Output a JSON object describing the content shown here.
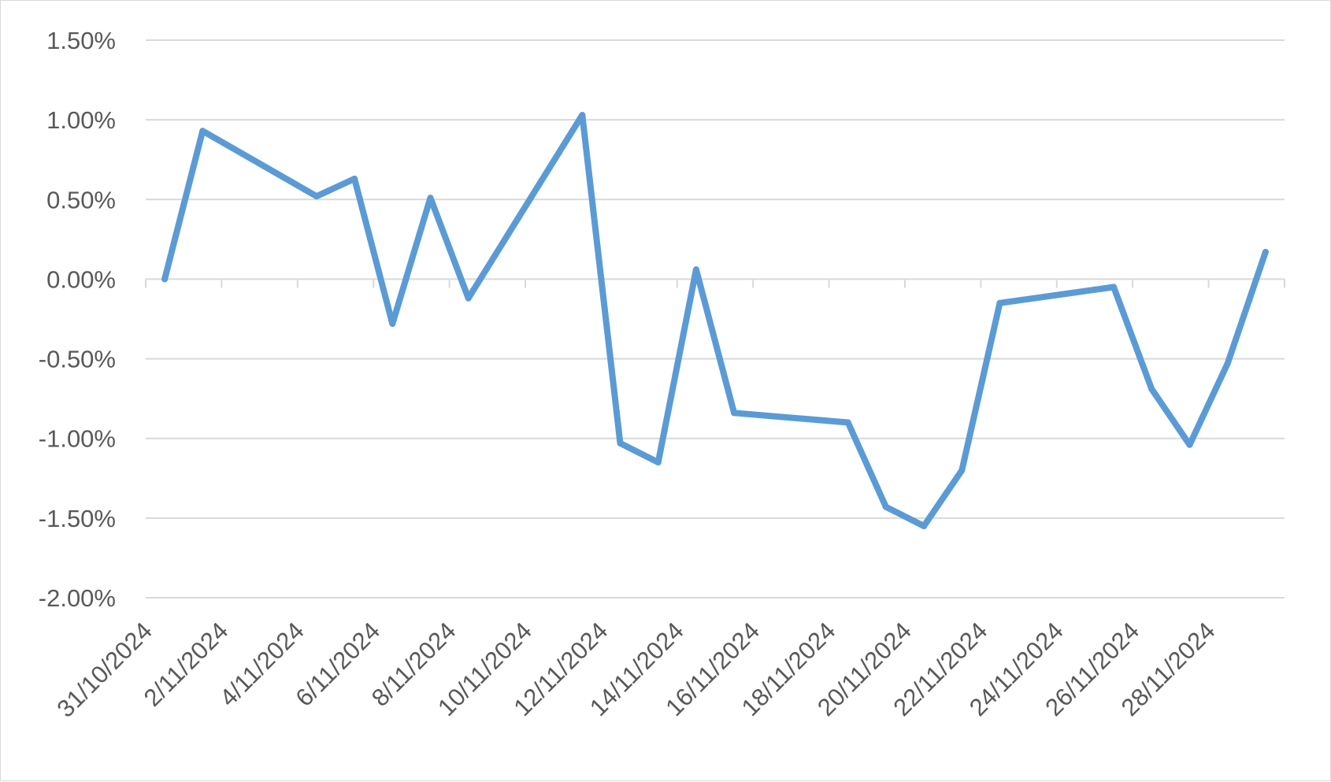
{
  "chart_data": {
    "type": "line",
    "title": "",
    "xlabel": "",
    "ylabel": "",
    "ylim": [
      -0.02,
      0.015
    ],
    "y_tick_values": [
      0.015,
      0.01,
      0.005,
      0.0,
      -0.005,
      -0.01,
      -0.015,
      -0.02
    ],
    "y_tick_labels": [
      "1.50%",
      "1.00%",
      "0.50%",
      "0.00%",
      "-0.50%",
      "-1.00%",
      "-1.50%",
      "-2.00%"
    ],
    "x_range": [
      "2024-10-31",
      "2024-11-30"
    ],
    "x_tick_dates": [
      "2024-10-31",
      "2024-11-02",
      "2024-11-04",
      "2024-11-06",
      "2024-11-08",
      "2024-11-10",
      "2024-11-12",
      "2024-11-14",
      "2024-11-16",
      "2024-11-18",
      "2024-11-20",
      "2024-11-22",
      "2024-11-24",
      "2024-11-26",
      "2024-11-28",
      "2024-11-30"
    ],
    "x_tick_labels": [
      "31/10/2024",
      "2/11/2024",
      "4/11/2024",
      "6/11/2024",
      "8/11/2024",
      "10/11/2024",
      "12/11/2024",
      "14/11/2024",
      "16/11/2024",
      "18/11/2024",
      "20/11/2024",
      "22/11/2024",
      "24/11/2024",
      "26/11/2024",
      "28/11/2024",
      ""
    ],
    "grid": true,
    "legend": "none",
    "series": [
      {
        "color": "#5b9bd5",
        "x": [
          "2024-10-31",
          "2024-11-01",
          "2024-11-04",
          "2024-11-05",
          "2024-11-06",
          "2024-11-07",
          "2024-11-08",
          "2024-11-11",
          "2024-11-12",
          "2024-11-13",
          "2024-11-14",
          "2024-11-15",
          "2024-11-18",
          "2024-11-19",
          "2024-11-20",
          "2024-11-21",
          "2024-11-22",
          "2024-11-25",
          "2024-11-26",
          "2024-11-27",
          "2024-11-28",
          "2024-11-29"
        ],
        "y": [
          0.0,
          0.0093,
          0.0052,
          0.0063,
          -0.0028,
          0.0051,
          -0.0012,
          0.0103,
          -0.0103,
          -0.0115,
          0.0006,
          -0.0084,
          -0.009,
          -0.0143,
          -0.0155,
          -0.012,
          -0.0015,
          -0.0005,
          -0.0069,
          -0.0104,
          -0.0053,
          0.0017
        ]
      }
    ]
  }
}
